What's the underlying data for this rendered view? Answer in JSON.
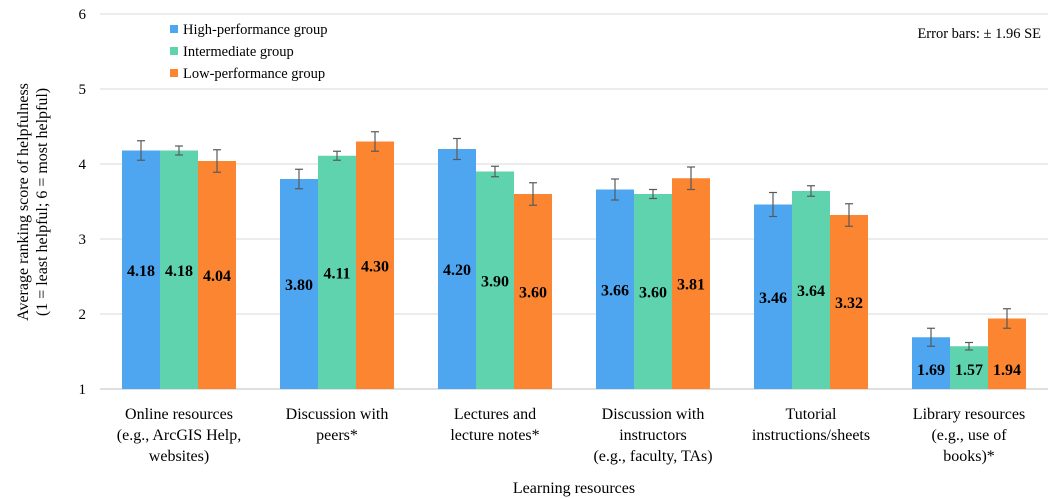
{
  "chart_data": {
    "type": "bar",
    "categories": [
      [
        "Online resources",
        "(e.g., ArcGIS Help,",
        "websites)"
      ],
      [
        "Discussion with",
        "peers*"
      ],
      [
        "Lectures and",
        "lecture notes*"
      ],
      [
        "Discussion with",
        "instructors",
        "(e.g., faculty, TAs)"
      ],
      [
        "Tutorial",
        "instructions/sheets"
      ],
      [
        "Library resources",
        "(e.g., use of",
        "books)*"
      ]
    ],
    "series": [
      {
        "name": "High-performance group",
        "color": "#4ea5f0",
        "values": [
          4.18,
          3.8,
          4.2,
          3.66,
          3.46,
          1.69
        ],
        "errors": [
          0.13,
          0.13,
          0.14,
          0.14,
          0.16,
          0.12
        ]
      },
      {
        "name": "Intermediate group",
        "color": "#5fd3ae",
        "values": [
          4.18,
          4.11,
          3.9,
          3.6,
          3.64,
          1.57
        ],
        "errors": [
          0.06,
          0.06,
          0.07,
          0.06,
          0.07,
          0.05
        ]
      },
      {
        "name": "Low-performance group",
        "color": "#fb8531",
        "values": [
          4.04,
          4.3,
          3.6,
          3.81,
          3.32,
          1.94
        ],
        "errors": [
          0.15,
          0.13,
          0.15,
          0.15,
          0.15,
          0.13
        ]
      }
    ],
    "value_labels": [
      [
        "4.18",
        "4.18",
        "4.04"
      ],
      [
        "3.80",
        "4.11",
        "4.30"
      ],
      [
        "4.20",
        "3.90",
        "3.60"
      ],
      [
        "3.66",
        "3.60",
        "3.81"
      ],
      [
        "3.46",
        "3.64",
        "3.32"
      ],
      [
        "1.69",
        "1.57",
        "1.94"
      ]
    ],
    "ylim": [
      1,
      6
    ],
    "yticks": [
      "1",
      "2",
      "3",
      "4",
      "5",
      "6"
    ],
    "xlabel": "Learning resources",
    "ylabel": [
      "Average ranking score of helpfulness",
      "(1 = least helpful; 6 = most helpful)"
    ],
    "note": "Error bars: ± 1.96 SE",
    "grid": true,
    "legend_position": "top-left"
  }
}
